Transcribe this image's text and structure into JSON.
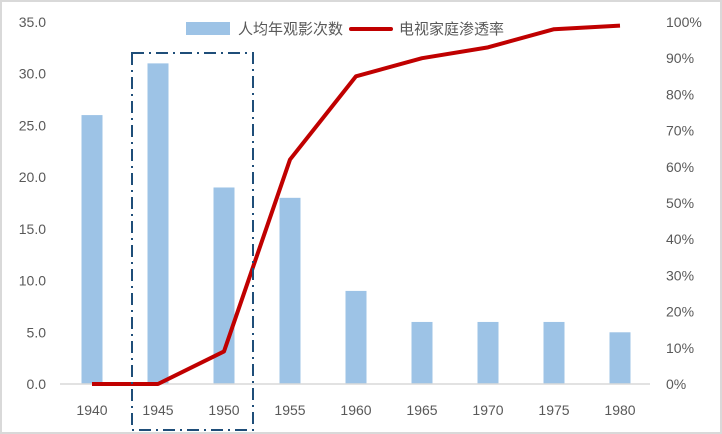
{
  "chart_data": {
    "type": "bar+line",
    "title": "",
    "categories": [
      "1940",
      "1945",
      "1950",
      "1955",
      "1960",
      "1965",
      "1970",
      "1975",
      "1980"
    ],
    "series": [
      {
        "name": "人均年观影次数",
        "type": "bar",
        "axis": "left",
        "color": "#9dc3e6",
        "values": [
          26,
          31,
          19,
          18,
          9,
          6,
          6,
          6,
          5
        ]
      },
      {
        "name": "电视家庭渗透率",
        "type": "line",
        "axis": "right",
        "color": "#c00000",
        "values": [
          0,
          0,
          0.09,
          0.62,
          0.85,
          0.9,
          0.93,
          0.98,
          0.99
        ]
      }
    ],
    "left_axis": {
      "ylim": [
        0,
        35
      ],
      "ticks": [
        "0.0",
        "5.0",
        "10.0",
        "15.0",
        "20.0",
        "25.0",
        "30.0",
        "35.0"
      ]
    },
    "right_axis": {
      "ylim": [
        0,
        1
      ],
      "ticks": [
        "0%",
        "10%",
        "20%",
        "30%",
        "40%",
        "50%",
        "60%",
        "70%",
        "80%",
        "90%",
        "100%"
      ]
    },
    "xlabel": "",
    "ylabel": "",
    "grid": false,
    "legend_position": "top",
    "annotation": {
      "type": "dash-dot box",
      "covers": [
        "1945",
        "1950"
      ],
      "color": "#1f4e79"
    }
  },
  "legend": {
    "bar_label": "人均年观影次数",
    "line_label": "电视家庭渗透率"
  }
}
